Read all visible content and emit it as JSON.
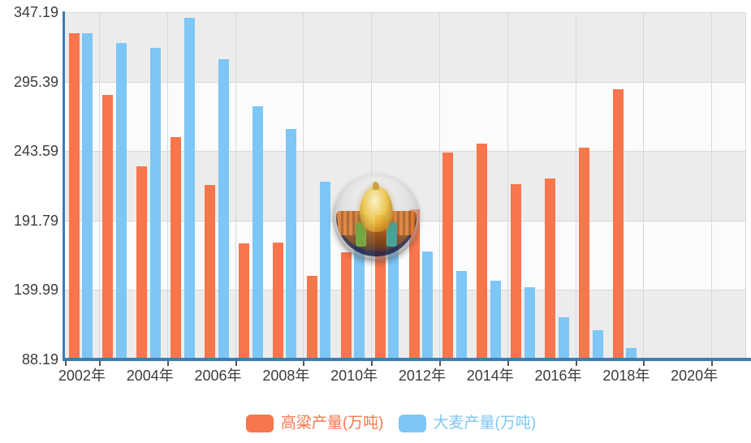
{
  "chart_data": {
    "type": "bar",
    "title": "",
    "categories": [
      "2002",
      "2003",
      "2004",
      "2005",
      "2006",
      "2007",
      "2008",
      "2009",
      "2010",
      "2011",
      "2012",
      "2013",
      "2014",
      "2015",
      "2016",
      "2017",
      "2018",
      "2019",
      "2020",
      "2021"
    ],
    "series": [
      {
        "name": "高粱产量(万吨)",
        "color": "#f7764b",
        "values": [
          331.7,
          285.7,
          232.4,
          253.9,
          218.2,
          174.9,
          175.1,
          150.8,
          168.0,
          196.1,
          200.1,
          242.4,
          249.4,
          219.2,
          223.3,
          246.4,
          289.8,
          null,
          null,
          null
        ]
      },
      {
        "name": "大麦产量(万吨)",
        "color": "#7ec6f5",
        "values": [
          331.5,
          324.4,
          320.4,
          343.1,
          311.9,
          277.2,
          259.9,
          220.9,
          195.9,
          191.5,
          168.9,
          154.4,
          146.7,
          142.1,
          119.5,
          110.1,
          96.4,
          null,
          null,
          null
        ]
      }
    ],
    "ylim": [
      88.19,
      347.19
    ],
    "y_axis_tick_labels": [
      "347.19",
      "295.39",
      "243.59",
      "191.79",
      "139.99",
      "88.19"
    ],
    "x_axis_tick_labels": [
      "2002年",
      "2004年",
      "2006年",
      "2008年",
      "2010年",
      "2012年",
      "2014年",
      "2016年",
      "2018年",
      "2020年"
    ],
    "grid": true,
    "legend_position": "bottom",
    "background_stripes": true
  },
  "colors": {
    "bar_orange": "#f7764b",
    "bar_blue": "#7ec6f5",
    "axis_line": "#3c7cb5",
    "stripe_gray": "#ececec",
    "stripe_white": "#fbfbfb",
    "gridline": "#d8d8d8",
    "tick": "#555555",
    "axis_text": "#3c3c3c"
  },
  "watermark": {
    "icon": "grain-globe-logo"
  }
}
